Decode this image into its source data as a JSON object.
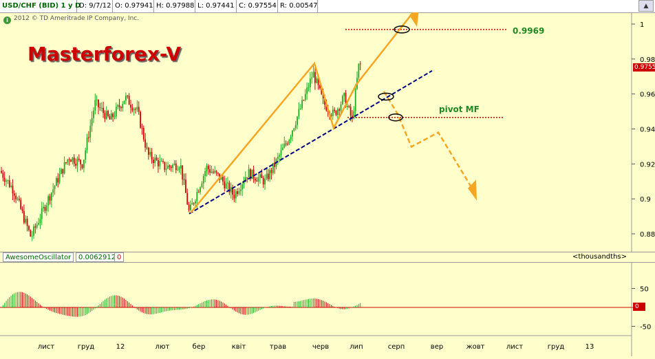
{
  "header": {
    "symbol": "USD/CHF (BID) 1 y D",
    "date": "D: 9/7/12",
    "open": "O: 0.97941",
    "high": "H: 0.97988",
    "low": "L: 0.97441",
    "close": "C: 0.97554",
    "range": "R: 0.00547"
  },
  "copyright": "2012 © TD Ameritrade IP Company, Inc.",
  "brand": "Masterforex-V",
  "annotations": {
    "target": "0.9969",
    "pivot": "pivot MF"
  },
  "last_price_tag": "0.9755",
  "ao": {
    "name": "AwesomeOscillator",
    "value": "0.0062912",
    "flag": "0",
    "units": "<thousandths>",
    "zero_tag": "0"
  },
  "colors": {
    "up": "#22aa22",
    "down": "#cc0000",
    "projection": "#f5a623",
    "trendline": "#000080",
    "level": "#cc0000"
  },
  "chart_data": [
    {
      "type": "candlestick",
      "title": "USD/CHF (BID) 1 y D",
      "ylim": [
        0.875,
        1.008
      ],
      "yticks": [
        "0.88",
        "0.9",
        "0.92",
        "0.94",
        "0.96",
        "0.98",
        "1"
      ],
      "xticks": [
        "лист",
        "груд",
        "12",
        "лют",
        "бер",
        "квіт",
        "трав",
        "черв",
        "лип",
        "серп",
        "вер",
        "жовт",
        "лист",
        "груд",
        "13"
      ],
      "levels": [
        {
          "name": "0.9969",
          "value": 0.9969
        },
        {
          "name": "pivot MF",
          "value": 0.9466
        }
      ],
      "last_close": 0.97554
    },
    {
      "type": "bar",
      "title": "AwesomeOscillator",
      "yticks": [
        "50",
        "0",
        "-50"
      ],
      "ylim": [
        -70,
        70
      ],
      "value": 0.0062912
    }
  ]
}
